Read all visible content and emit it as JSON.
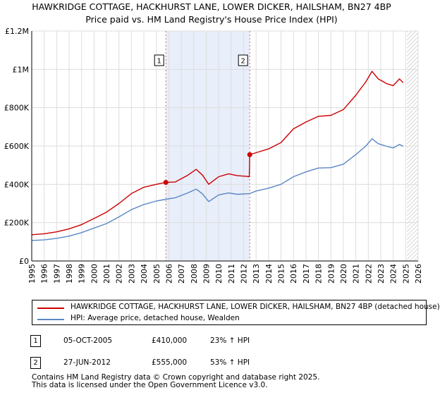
{
  "title_line1": "HAWKRIDGE COTTAGE, HACKHURST LANE, LOWER DICKER, HAILSHAM, BN27 4BP",
  "title_line2": "Price paid vs. HM Land Registry's House Price Index (HPI)",
  "colors": {
    "property": "#cc0000",
    "hpi": "#5b87c5",
    "shade": "#e8eefa",
    "grid": "#dddddd",
    "marker_line": "#e06666"
  },
  "chart_data": {
    "type": "line",
    "xlim": [
      1995,
      2026
    ],
    "ylim": [
      0,
      1200000
    ],
    "x_ticks": [
      1995,
      1996,
      1997,
      1998,
      1999,
      2000,
      2001,
      2002,
      2003,
      2004,
      2005,
      2006,
      2007,
      2008,
      2009,
      2010,
      2011,
      2012,
      2013,
      2014,
      2015,
      2016,
      2017,
      2018,
      2019,
      2020,
      2021,
      2022,
      2023,
      2024,
      2025,
      2026
    ],
    "y_ticks": [
      {
        "value": 0,
        "label": "£0"
      },
      {
        "value": 200000,
        "label": "£200K"
      },
      {
        "value": 400000,
        "label": "£400K"
      },
      {
        "value": 600000,
        "label": "£600K"
      },
      {
        "value": 800000,
        "label": "£800K"
      },
      {
        "value": 1000000,
        "label": "£1M"
      },
      {
        "value": 1200000,
        "label": "£1.2M"
      }
    ],
    "shaded_range": [
      2005.76,
      2012.49
    ],
    "hatch_from": 2025.1,
    "series": [
      {
        "name": "HAWKRIDGE COTTAGE, HACKHURST LANE, LOWER DICKER, HAILSHAM, BN27 4BP (detached house)",
        "color": "#cc0000",
        "points": [
          [
            1995.0,
            137000
          ],
          [
            1996.0,
            142000
          ],
          [
            1997.0,
            152000
          ],
          [
            1998.0,
            168000
          ],
          [
            1999.0,
            190000
          ],
          [
            2000.0,
            222000
          ],
          [
            2001.0,
            255000
          ],
          [
            2002.0,
            300000
          ],
          [
            2003.0,
            352000
          ],
          [
            2004.0,
            385000
          ],
          [
            2005.0,
            400000
          ],
          [
            2005.76,
            410000
          ],
          [
            2006.5,
            412000
          ],
          [
            2007.5,
            447000
          ],
          [
            2008.2,
            478000
          ],
          [
            2008.7,
            448000
          ],
          [
            2009.2,
            400000
          ],
          [
            2010.0,
            440000
          ],
          [
            2010.8,
            455000
          ],
          [
            2011.5,
            445000
          ],
          [
            2012.2,
            442000
          ],
          [
            2012.45,
            440000
          ],
          [
            2012.49,
            555000
          ],
          [
            2013.0,
            565000
          ],
          [
            2014.0,
            585000
          ],
          [
            2015.0,
            618000
          ],
          [
            2016.0,
            690000
          ],
          [
            2017.0,
            725000
          ],
          [
            2018.0,
            755000
          ],
          [
            2019.0,
            760000
          ],
          [
            2020.0,
            790000
          ],
          [
            2021.0,
            865000
          ],
          [
            2021.8,
            935000
          ],
          [
            2022.3,
            990000
          ],
          [
            2022.8,
            950000
          ],
          [
            2023.5,
            925000
          ],
          [
            2024.0,
            915000
          ],
          [
            2024.5,
            950000
          ],
          [
            2024.8,
            930000
          ]
        ]
      },
      {
        "name": "HPI: Average price, detached house, Wealden",
        "color": "#5b87c5",
        "points": [
          [
            1995.0,
            107000
          ],
          [
            1996.0,
            110000
          ],
          [
            1997.0,
            118000
          ],
          [
            1998.0,
            130000
          ],
          [
            1999.0,
            148000
          ],
          [
            2000.0,
            172000
          ],
          [
            2001.0,
            195000
          ],
          [
            2002.0,
            230000
          ],
          [
            2003.0,
            268000
          ],
          [
            2004.0,
            295000
          ],
          [
            2005.0,
            313000
          ],
          [
            2005.76,
            322000
          ],
          [
            2006.5,
            330000
          ],
          [
            2007.5,
            355000
          ],
          [
            2008.2,
            375000
          ],
          [
            2008.7,
            350000
          ],
          [
            2009.2,
            310000
          ],
          [
            2010.0,
            345000
          ],
          [
            2010.8,
            355000
          ],
          [
            2011.5,
            348000
          ],
          [
            2012.49,
            352000
          ],
          [
            2013.0,
            365000
          ],
          [
            2014.0,
            380000
          ],
          [
            2015.0,
            400000
          ],
          [
            2016.0,
            440000
          ],
          [
            2017.0,
            465000
          ],
          [
            2018.0,
            485000
          ],
          [
            2019.0,
            487000
          ],
          [
            2020.0,
            505000
          ],
          [
            2021.0,
            555000
          ],
          [
            2021.8,
            600000
          ],
          [
            2022.3,
            638000
          ],
          [
            2022.8,
            612000
          ],
          [
            2023.5,
            598000
          ],
          [
            2024.0,
            590000
          ],
          [
            2024.5,
            608000
          ],
          [
            2024.8,
            598000
          ]
        ]
      }
    ],
    "markers": [
      {
        "label": "1",
        "x": 2005.76,
        "y": 410000
      },
      {
        "label": "2",
        "x": 2012.49,
        "y": 555000
      }
    ]
  },
  "legend": {
    "property_label": "HAWKRIDGE COTTAGE, HACKHURST LANE, LOWER DICKER, HAILSHAM, BN27 4BP (detached house)",
    "hpi_label": "HPI: Average price, detached house, Wealden"
  },
  "sales": [
    {
      "num": "1",
      "date": "05-OCT-2005",
      "price": "£410,000",
      "hpi": "23% ↑ HPI"
    },
    {
      "num": "2",
      "date": "27-JUN-2012",
      "price": "£555,000",
      "hpi": "53% ↑ HPI"
    }
  ],
  "footer_line1": "Contains HM Land Registry data © Crown copyright and database right 2025.",
  "footer_line2": "This data is licensed under the Open Government Licence v3.0."
}
